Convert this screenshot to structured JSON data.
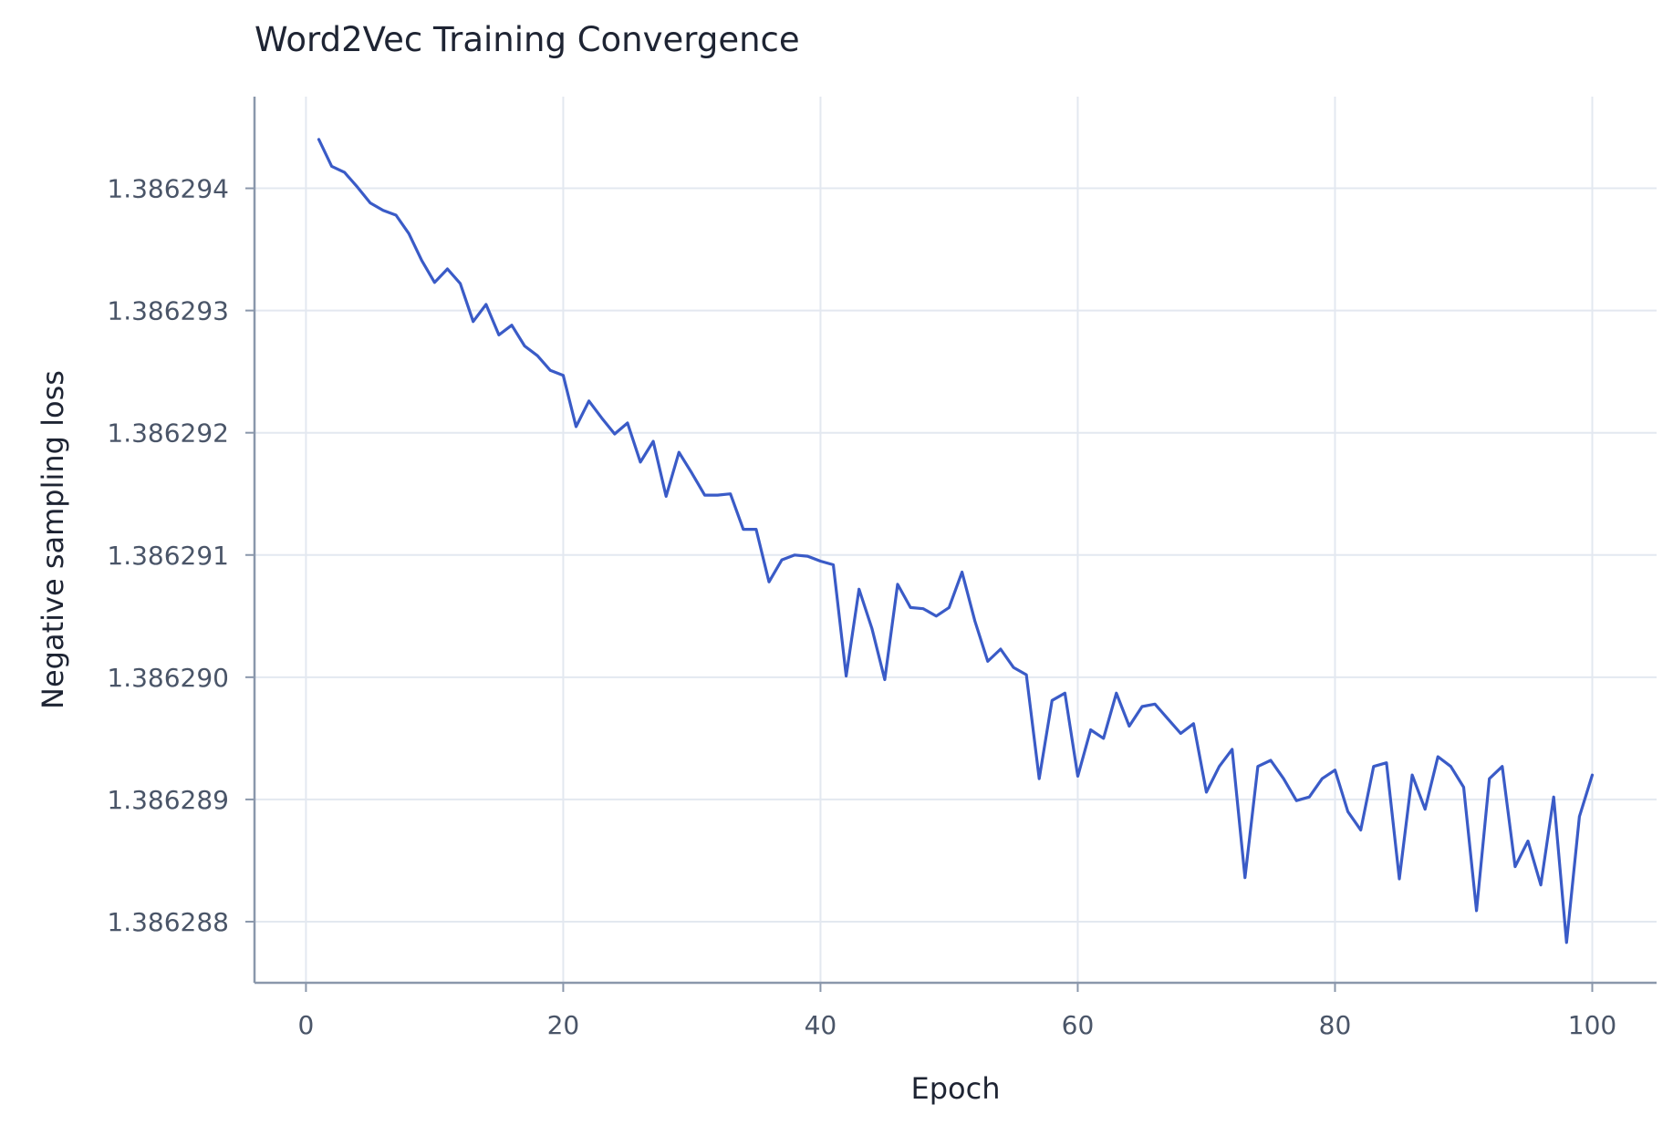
{
  "chart_data": {
    "type": "line",
    "title": "Word2Vec Training Convergence",
    "xlabel": "Epoch",
    "ylabel": "Negative sampling loss",
    "xlim": [
      -4,
      105
    ],
    "ylim": [
      1.3862875,
      1.38629475
    ],
    "xticks": [
      0,
      20,
      40,
      60,
      80,
      100
    ],
    "yticks": [
      1.386288,
      1.386289,
      1.38629,
      1.386291,
      1.386292,
      1.386293,
      1.386294
    ],
    "ytick_labels": [
      "1.386288",
      "1.386289",
      "1.386290",
      "1.386291",
      "1.386292",
      "1.386293",
      "1.386294"
    ],
    "grid": true,
    "line_color": "#3a5bc7",
    "series": [
      {
        "x": [
          1,
          2,
          3,
          4,
          5,
          6,
          7,
          8,
          9,
          10,
          11,
          12,
          13,
          14,
          15,
          16,
          17,
          18,
          19,
          20,
          21,
          22,
          23,
          24,
          25,
          26,
          27,
          28,
          29,
          30,
          31,
          32,
          33,
          34,
          35,
          36,
          37,
          38,
          39,
          40,
          41,
          42,
          43,
          44,
          45,
          46,
          47,
          48,
          49,
          50,
          51,
          52,
          53,
          54,
          55,
          56,
          57,
          58,
          59,
          60,
          61,
          62,
          63,
          64,
          65,
          66,
          67,
          68,
          69,
          70,
          71,
          72,
          73,
          74,
          75,
          76,
          77,
          78,
          79,
          80,
          81,
          82,
          83,
          84,
          85,
          86,
          87,
          88,
          89,
          90,
          91,
          92,
          93,
          94,
          95,
          96,
          97,
          98,
          99,
          100
        ],
        "y": [
          1.3862944,
          1.38629418,
          1.38629413,
          1.38629401,
          1.38629388,
          1.38629382,
          1.38629378,
          1.38629363,
          1.38629341,
          1.38629323,
          1.38629334,
          1.38629322,
          1.38629291,
          1.38629305,
          1.3862928,
          1.38629288,
          1.38629271,
          1.38629263,
          1.38629251,
          1.38629247,
          1.38629205,
          1.38629226,
          1.38629212,
          1.38629199,
          1.38629208,
          1.38629176,
          1.38629193,
          1.38629148,
          1.38629184,
          1.38629167,
          1.38629149,
          1.38629149,
          1.3862915,
          1.38629121,
          1.38629121,
          1.38629078,
          1.38629096,
          1.386291,
          1.38629099,
          1.38629095,
          1.38629092,
          1.38629001,
          1.38629072,
          1.3862904,
          1.38628998,
          1.38629076,
          1.38629057,
          1.38629056,
          1.3862905,
          1.38629057,
          1.38629086,
          1.38629046,
          1.38629013,
          1.38629023,
          1.38629008,
          1.38629002,
          1.38628917,
          1.38628981,
          1.38628987,
          1.38628919,
          1.38628957,
          1.3862895,
          1.38628987,
          1.3862896,
          1.38628976,
          1.38628978,
          1.38628966,
          1.38628954,
          1.38628962,
          1.38628906,
          1.38628927,
          1.38628941,
          1.38628836,
          1.38628927,
          1.38628932,
          1.38628917,
          1.38628899,
          1.38628902,
          1.38628917,
          1.38628924,
          1.3862889,
          1.38628875,
          1.38628927,
          1.3862893,
          1.38628835,
          1.3862892,
          1.38628892,
          1.38628935,
          1.38628927,
          1.3862891,
          1.38628809,
          1.38628917,
          1.38628927,
          1.38628845,
          1.38628866,
          1.3862883,
          1.38628902,
          1.38628783,
          1.38628886,
          1.3862892
        ]
      }
    ]
  }
}
